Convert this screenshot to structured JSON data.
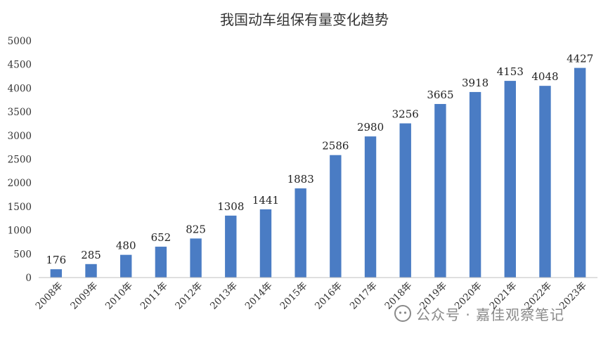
{
  "chart_data": {
    "type": "bar",
    "title": "我国动车组保有量变化趋势",
    "categories": [
      "2008年",
      "2009年",
      "2010年",
      "2011年",
      "2012年",
      "2013年",
      "2014年",
      "2015年",
      "2016年",
      "2017年",
      "2018年",
      "2019年",
      "2020年",
      "2021年",
      "2022年",
      "2023年"
    ],
    "values": [
      176,
      285,
      480,
      652,
      825,
      1308,
      1441,
      1883,
      2586,
      2980,
      3256,
      3665,
      3918,
      4153,
      4048,
      4427
    ],
    "ylim": [
      0,
      5000
    ],
    "yticks": [
      0,
      500,
      1000,
      1500,
      2000,
      2500,
      3000,
      3500,
      4000,
      4500,
      5000
    ],
    "xlabel": "",
    "ylabel": "",
    "grid": false,
    "legend": "none",
    "bar_color": "#4A7CC4"
  },
  "watermark": {
    "text": "公众号 · 嘉佳观察笔记"
  }
}
